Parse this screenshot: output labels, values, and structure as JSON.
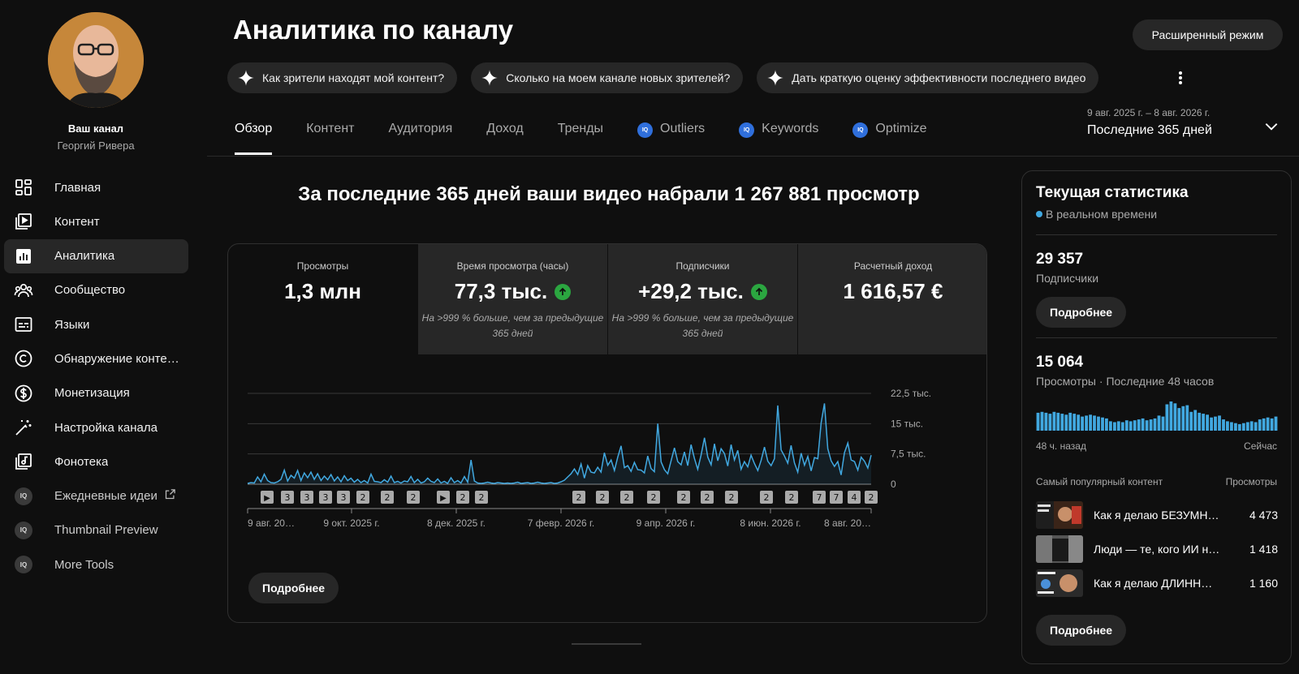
{
  "sidebar": {
    "channel_label": "Ваш канал",
    "channel_name": "Георгий Ривера",
    "items": [
      {
        "label": "Главная",
        "icon": "dashboard-icon"
      },
      {
        "label": "Контент",
        "icon": "content-icon"
      },
      {
        "label": "Аналитика",
        "icon": "analytics-icon",
        "active": true
      },
      {
        "label": "Сообщество",
        "icon": "community-icon"
      },
      {
        "label": "Языки",
        "icon": "subtitles-icon"
      },
      {
        "label": "Обнаружение контен…",
        "icon": "copyright-icon"
      },
      {
        "label": "Монетизация",
        "icon": "monetization-icon"
      },
      {
        "label": "Настройка канала",
        "icon": "customization-icon"
      },
      {
        "label": "Фонотека",
        "icon": "audio-library-icon"
      },
      {
        "label": "Ежедневные идеи",
        "icon": "iq-icon"
      },
      {
        "label": "Thumbnail Preview",
        "icon": "iq-icon"
      },
      {
        "label": "More Tools",
        "icon": "iq-icon"
      }
    ]
  },
  "header": {
    "title": "Аналитика по каналу",
    "advanced_mode": "Расширенный режим",
    "chips": [
      "Как зрители находят мой контент?",
      "Сколько на моем канале новых зрителей?",
      "Дать краткую оценку эффективности последнего видео"
    ],
    "tabs": [
      "Обзор",
      "Контент",
      "Аудитория",
      "Доход",
      "Тренды",
      "Outliers",
      "Keywords",
      "Optimize"
    ],
    "date_range": {
      "sub": "9 авг. 2025 г. – 8 авг. 2026 г.",
      "main": "Последние 365 дней"
    }
  },
  "overview": {
    "headline": "За последние 365 дней ваши видео набрали 1 267 881 просмотр",
    "metrics": [
      {
        "label": "Просмотры",
        "value": "1,3 млн",
        "note": ""
      },
      {
        "label": "Время просмотра (часы)",
        "value": "77,3 тыс.",
        "note": "На >999 % больше, чем за предыдущие 365 дней"
      },
      {
        "label": "Подписчики",
        "value": "+29,2 тыс.",
        "note": "На >999 % больше, чем за предыдущие 365 дней"
      },
      {
        "label": "Расчетный доход",
        "value": "1 616,57 €",
        "note": ""
      }
    ],
    "more_label": "Подробнее"
  },
  "chart_data": {
    "type": "line",
    "series": [
      {
        "values": [
          200,
          400,
          300,
          1800,
          600,
          2500,
          900,
          400,
          300,
          600,
          1200,
          3500,
          800,
          2200,
          1500,
          3400,
          900,
          2800,
          1600,
          3000,
          1200,
          2600,
          900,
          2000,
          1100,
          2400,
          800,
          1800,
          600,
          2100,
          900,
          1500,
          500,
          1200,
          400,
          900,
          300,
          2500,
          700,
          600,
          400,
          1100,
          500,
          2000,
          400,
          700,
          300,
          800,
          600,
          1900,
          400,
          1200,
          300,
          600,
          1500,
          700,
          400,
          1300,
          300,
          700,
          200,
          1600,
          400,
          900,
          300,
          1900,
          500,
          6000,
          800,
          300,
          200,
          300,
          500,
          300,
          200,
          400,
          300,
          200,
          300,
          200,
          300,
          500,
          200,
          300,
          400,
          200,
          300,
          500,
          300,
          200,
          300,
          400,
          200,
          300,
          600,
          1000,
          1800,
          2600,
          3800,
          2400,
          5000,
          1500,
          4600,
          3000,
          2800,
          4200,
          3000,
          7800,
          4700,
          6000,
          3400,
          6700,
          9500,
          4100,
          4600,
          3200,
          5400,
          3600,
          3500,
          2800,
          7000,
          3900,
          3100,
          15000,
          5500,
          3600,
          2600,
          5800,
          9000,
          5600,
          4800,
          8000,
          4600,
          9800,
          6400,
          3700,
          7200,
          11500,
          6700,
          4800,
          10000,
          5800,
          8800,
          7600,
          4500,
          9800,
          6000,
          8400,
          3700,
          5600,
          4300,
          7200,
          5100,
          3400,
          5900,
          9200,
          5700,
          4600,
          6300,
          19500,
          8500,
          7000,
          5200,
          9600,
          5300,
          3000,
          7700,
          4700,
          6900,
          3300,
          6600,
          6300,
          15200,
          20000,
          8800,
          5800,
          4400,
          5600,
          2300,
          7800,
          10200,
          6000,
          5600,
          3500,
          6700,
          5700,
          4000,
          7200
        ]
      }
    ],
    "y_ticks": [
      "22,5 тыс.",
      "15 тыс.",
      "7,5 тыс.",
      "0"
    ],
    "ylim": [
      0,
      22500
    ],
    "x_labels": [
      "9 авг. 20…",
      "9 окт. 2025 г.",
      "8 дек. 2025 г.",
      "7 февр. 2026 г.",
      "9 апр. 2026 г.",
      "8 июн. 2026 г.",
      "8 авг. 20…"
    ],
    "markers": [
      "▶",
      "3",
      "3",
      "3",
      "3",
      "2",
      "2",
      "2",
      "▶",
      "2",
      "2",
      "2",
      "2",
      "2",
      "2",
      "2",
      "2",
      "2",
      "2",
      "2",
      "7",
      "7",
      "4",
      "2"
    ]
  },
  "realtime": {
    "title": "Текущая статистика",
    "live": "В реальном времени",
    "subscribers": "29 357",
    "subscribers_label": "Подписчики",
    "more_label": "Подробнее",
    "views": "15 064",
    "views_label": "Просмотры · Последние 48 часов",
    "bars": [
      38,
      40,
      38,
      36,
      40,
      38,
      36,
      34,
      38,
      36,
      34,
      30,
      32,
      34,
      32,
      30,
      28,
      26,
      20,
      18,
      20,
      18,
      22,
      20,
      22,
      24,
      26,
      22,
      24,
      26,
      32,
      30,
      56,
      62,
      58,
      48,
      52,
      54,
      40,
      44,
      38,
      36,
      34,
      28,
      30,
      32,
      24,
      20,
      18,
      16,
      14,
      16,
      18,
      20,
      18,
      24,
      26,
      28,
      26,
      30
    ],
    "from_label": "48 ч. назад",
    "to_label": "Сейчас",
    "top_label": "Самый популярный контент",
    "views_col": "Просмотры",
    "top": [
      {
        "title": "Как я делаю БЕЗУМН…",
        "views": "4 473"
      },
      {
        "title": "Люди — те, кого ИИ н…",
        "views": "1 418"
      },
      {
        "title": "Как я делаю ДЛИНН…",
        "views": "1 160"
      }
    ],
    "more_label2": "Подробнее"
  }
}
